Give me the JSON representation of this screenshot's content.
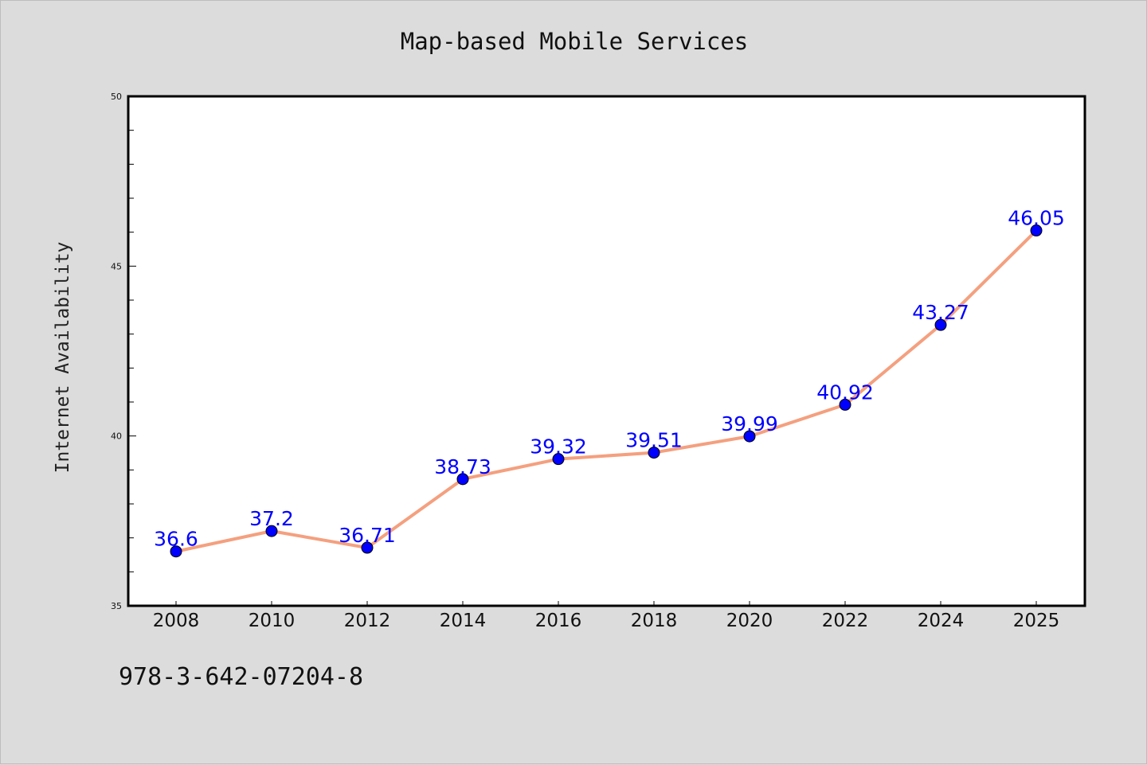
{
  "chart_data": {
    "type": "line",
    "title": "Map-based Mobile Services",
    "xlabel": "",
    "ylabel": "Internet Availability",
    "categories": [
      "2008",
      "2010",
      "2012",
      "2014",
      "2016",
      "2018",
      "2020",
      "2022",
      "2024",
      "2025"
    ],
    "series": [
      {
        "values": [
          36.6,
          37.2,
          36.71,
          38.73,
          39.32,
          39.51,
          39.99,
          40.92,
          43.27,
          46.05
        ],
        "labels": [
          "36.6",
          "37.2",
          "36.71",
          "38.73",
          "39.32",
          "39.51",
          "39.99",
          "40.92",
          "43.27",
          "46.05"
        ]
      }
    ],
    "ylim": [
      35,
      50
    ],
    "yticks": [
      "35",
      "40",
      "45",
      "50"
    ],
    "grid": false,
    "line_color": "#f4a07f",
    "marker_color": "#0000ff",
    "label_color": "#0000ff"
  },
  "footer": {
    "code": "978-3-642-07204-8"
  }
}
